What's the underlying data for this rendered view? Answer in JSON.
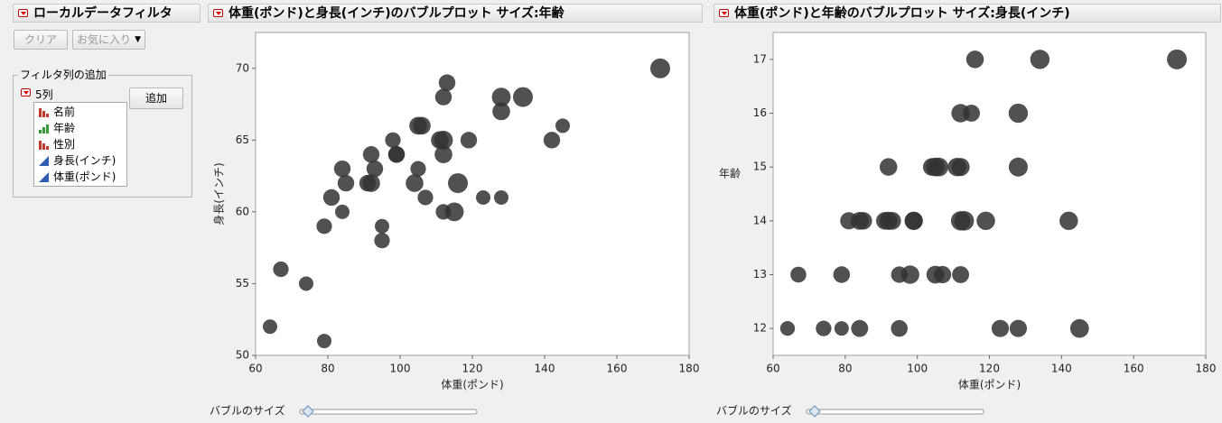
{
  "filter_panel": {
    "title": "ローカルデータフィルタ",
    "clear_button": "クリア",
    "favorites_button": "お気に入り",
    "add_columns_title": "フィルタ列の追加",
    "column_count": "5列",
    "add_button": "追加",
    "columns": [
      "名前",
      "年齢",
      "性別",
      "身長(インチ)",
      "体重(ポンド)"
    ]
  },
  "chart_data": [
    {
      "type": "bubble",
      "title": "体重(ポンド)と身長(インチ)のバブルプロット サイズ:年齢",
      "x_label": "体重(ポンド)",
      "y_label": "身長(インチ)",
      "size_slider_label": "バブルのサイズ",
      "color": "#333333",
      "x": [
        95,
        123,
        74,
        145,
        64,
        84,
        128,
        79,
        112,
        107,
        67,
        98,
        105,
        95,
        79,
        81,
        91,
        142,
        84,
        85,
        93,
        99,
        119,
        92,
        112,
        99,
        113,
        92,
        112,
        128,
        111,
        105,
        104,
        106,
        112,
        115,
        128,
        116,
        134,
        172
      ],
      "values": [
        59,
        61,
        55,
        66,
        52,
        60,
        61,
        51,
        60,
        61,
        56,
        65,
        63,
        58,
        59,
        61,
        62,
        65,
        63,
        62,
        63,
        64,
        65,
        64,
        68,
        64,
        69,
        62,
        64,
        67,
        65,
        66,
        62,
        66,
        65,
        60,
        68,
        62,
        68,
        70
      ],
      "sizes": [
        12,
        12,
        12,
        12,
        12,
        12,
        12,
        12,
        13,
        13,
        13,
        13,
        13,
        13,
        13,
        14,
        14,
        14,
        14,
        14,
        14,
        14,
        14,
        14,
        14,
        14,
        14,
        15,
        15,
        15,
        15,
        15,
        15,
        15,
        16,
        16,
        16,
        17,
        17,
        17
      ],
      "xlim": [
        60,
        180
      ],
      "ylim": [
        50,
        72.5
      ],
      "xticks": [
        60,
        80,
        100,
        120,
        140,
        160,
        180
      ],
      "yticks": [
        50,
        55,
        60,
        65,
        70
      ]
    },
    {
      "type": "bubble",
      "title": "体重(ポンド)と年齢のバブルプロット サイズ:身長(インチ)",
      "x_label": "体重(ポンド)",
      "y_label": "年齢",
      "size_slider_label": "バブルのサイズ",
      "color": "#333333",
      "x": [
        95,
        123,
        74,
        145,
        64,
        84,
        128,
        79,
        112,
        107,
        67,
        98,
        105,
        95,
        79,
        81,
        91,
        142,
        84,
        85,
        93,
        99,
        119,
        92,
        112,
        99,
        113,
        92,
        112,
        128,
        111,
        105,
        104,
        106,
        112,
        115,
        128,
        116,
        134,
        172
      ],
      "values": [
        12,
        12,
        12,
        12,
        12,
        12,
        12,
        12,
        13,
        13,
        13,
        13,
        13,
        13,
        13,
        14,
        14,
        14,
        14,
        14,
        14,
        14,
        14,
        14,
        14,
        14,
        14,
        15,
        15,
        15,
        15,
        15,
        15,
        15,
        16,
        16,
        16,
        17,
        17,
        17
      ],
      "sizes": [
        59,
        61,
        55,
        66,
        52,
        60,
        61,
        51,
        60,
        61,
        56,
        65,
        63,
        58,
        59,
        61,
        62,
        65,
        63,
        62,
        63,
        64,
        65,
        64,
        68,
        64,
        69,
        62,
        64,
        67,
        65,
        66,
        62,
        66,
        65,
        60,
        68,
        62,
        68,
        70
      ],
      "xlim": [
        60,
        180
      ],
      "ylim": [
        11.5,
        17.5
      ],
      "xticks": [
        60,
        80,
        100,
        120,
        140,
        160,
        180
      ],
      "yticks": [
        12,
        13,
        14,
        15,
        16,
        17
      ]
    }
  ]
}
